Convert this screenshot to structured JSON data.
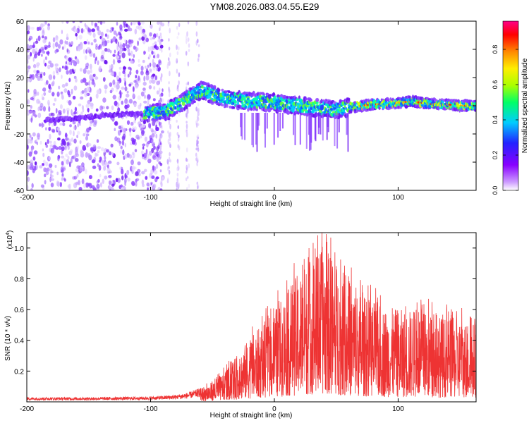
{
  "title": "YM08.2026.083.04.55.E29",
  "chart_data": [
    {
      "type": "heatmap",
      "xlabel": "Height of straight line (km)",
      "ylabel": "Frequency (Hz)",
      "xlim": [
        -200,
        163
      ],
      "ylim": [
        -60,
        60
      ],
      "xticks": [
        "-200",
        "-100",
        "0",
        "100"
      ],
      "yticks": [
        "60",
        "40",
        "20",
        "0",
        "-20",
        "-40",
        "-60"
      ],
      "colorbar": {
        "label": "Normalized spectral amplitude",
        "range": [
          0,
          0.96
        ],
        "ticks": [
          "0.0",
          "0.2",
          "0.4",
          "0.6",
          "0.8"
        ],
        "colors": [
          "#ffffff",
          "#cc99ff",
          "#8800ff",
          "#2222ff",
          "#00ccff",
          "#00ff66",
          "#aaff00",
          "#ffee00",
          "#ff8800",
          "#ff0000",
          "#ff0088"
        ]
      },
      "ridge": {
        "x": [
          -200,
          -180,
          -160,
          -140,
          -120,
          -105,
          -95,
          -85,
          -75,
          -65,
          -58,
          -50,
          -40,
          -30,
          -20,
          -10,
          0,
          10,
          20,
          30,
          40,
          50,
          60,
          70,
          80,
          90,
          100,
          110,
          120,
          130,
          140,
          150,
          163
        ],
        "y": [
          -10,
          -10,
          -9,
          -7,
          -6,
          -6,
          -5,
          -3,
          2,
          8,
          11,
          8,
          5,
          4,
          3,
          3,
          2,
          1,
          0,
          -1,
          -2,
          -3,
          -1,
          0,
          1,
          1,
          2,
          3,
          2,
          1,
          1,
          0,
          0
        ]
      }
    },
    {
      "type": "line",
      "xlabel": "Height of straight line (km)",
      "ylabel": "SNR (10 * v/v)",
      "y_multiplier": "(x10",
      "y_multiplier_exp": "4",
      "y_multiplier_close": ")",
      "xlim": [
        -200,
        163
      ],
      "ylim": [
        0.0,
        1.1
      ],
      "xticks": [
        "-200",
        "-100",
        "0",
        "100"
      ],
      "yticks": [
        "1.0",
        "0.8",
        "0.6",
        "0.4",
        "0.2"
      ],
      "color": "#ee3333",
      "envelope": {
        "x": [
          -200,
          -150,
          -100,
          -80,
          -70,
          -60,
          -50,
          -40,
          -30,
          -20,
          -10,
          0,
          10,
          20,
          30,
          40,
          50,
          60,
          70,
          80,
          90,
          100,
          110,
          120,
          130,
          140,
          150,
          163
        ],
        "y": [
          0.03,
          0.03,
          0.035,
          0.045,
          0.06,
          0.09,
          0.13,
          0.2,
          0.3,
          0.42,
          0.5,
          0.6,
          0.72,
          0.85,
          0.95,
          1.02,
          0.9,
          0.8,
          0.7,
          0.66,
          0.62,
          0.6,
          0.6,
          0.6,
          0.57,
          0.55,
          0.54,
          0.52
        ]
      }
    }
  ]
}
